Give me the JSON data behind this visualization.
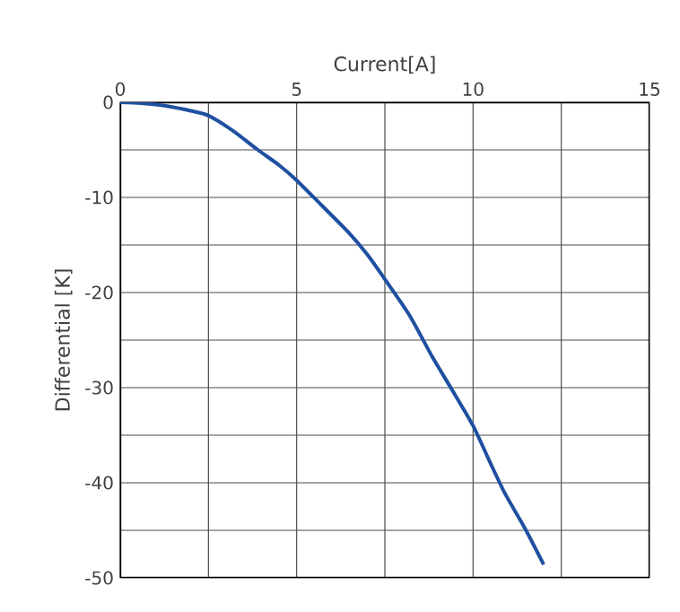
{
  "chart_data": {
    "type": "line",
    "xlabel": "Current[A]",
    "ylabel": "Differential [K]",
    "x": [
      0,
      0.6,
      1.33,
      2.0,
      2.5,
      3.2,
      3.9,
      4.5,
      5,
      5.7,
      6.45,
      7.0,
      7.5,
      8.2,
      8.85,
      9.4,
      10,
      10.5,
      10.9,
      11.5,
      12.0
    ],
    "series": [
      {
        "color": "#1f4fa0",
        "values": [
          0,
          -0.1,
          -0.4,
          -0.9,
          -1.4,
          -3.0,
          -5,
          -6.6,
          -8.2,
          -10.8,
          -13.6,
          -16.0,
          -18.6,
          -22.4,
          -26.8,
          -30.2,
          -34,
          -38.0,
          -41.1,
          -45.0,
          -48.6
        ]
      }
    ],
    "xlim": [
      0,
      15
    ],
    "xticks": [
      0,
      {
        "value": 2.5,
        "label": null
      },
      5,
      {
        "value": 7.5,
        "label": null
      },
      10,
      {
        "value": 12.5,
        "label": null
      },
      15
    ],
    "ylim": [
      -50,
      0
    ],
    "yticks": [
      -50,
      {
        "value": -45,
        "label": null
      },
      -40,
      {
        "value": -35,
        "label": null
      },
      -30,
      {
        "value": -25,
        "label": null
      },
      -20,
      {
        "value": -15,
        "label": null
      },
      -10,
      {
        "value": -5,
        "label": null
      },
      0
    ],
    "grid": true,
    "marker": "none",
    "line_style": "solid"
  }
}
